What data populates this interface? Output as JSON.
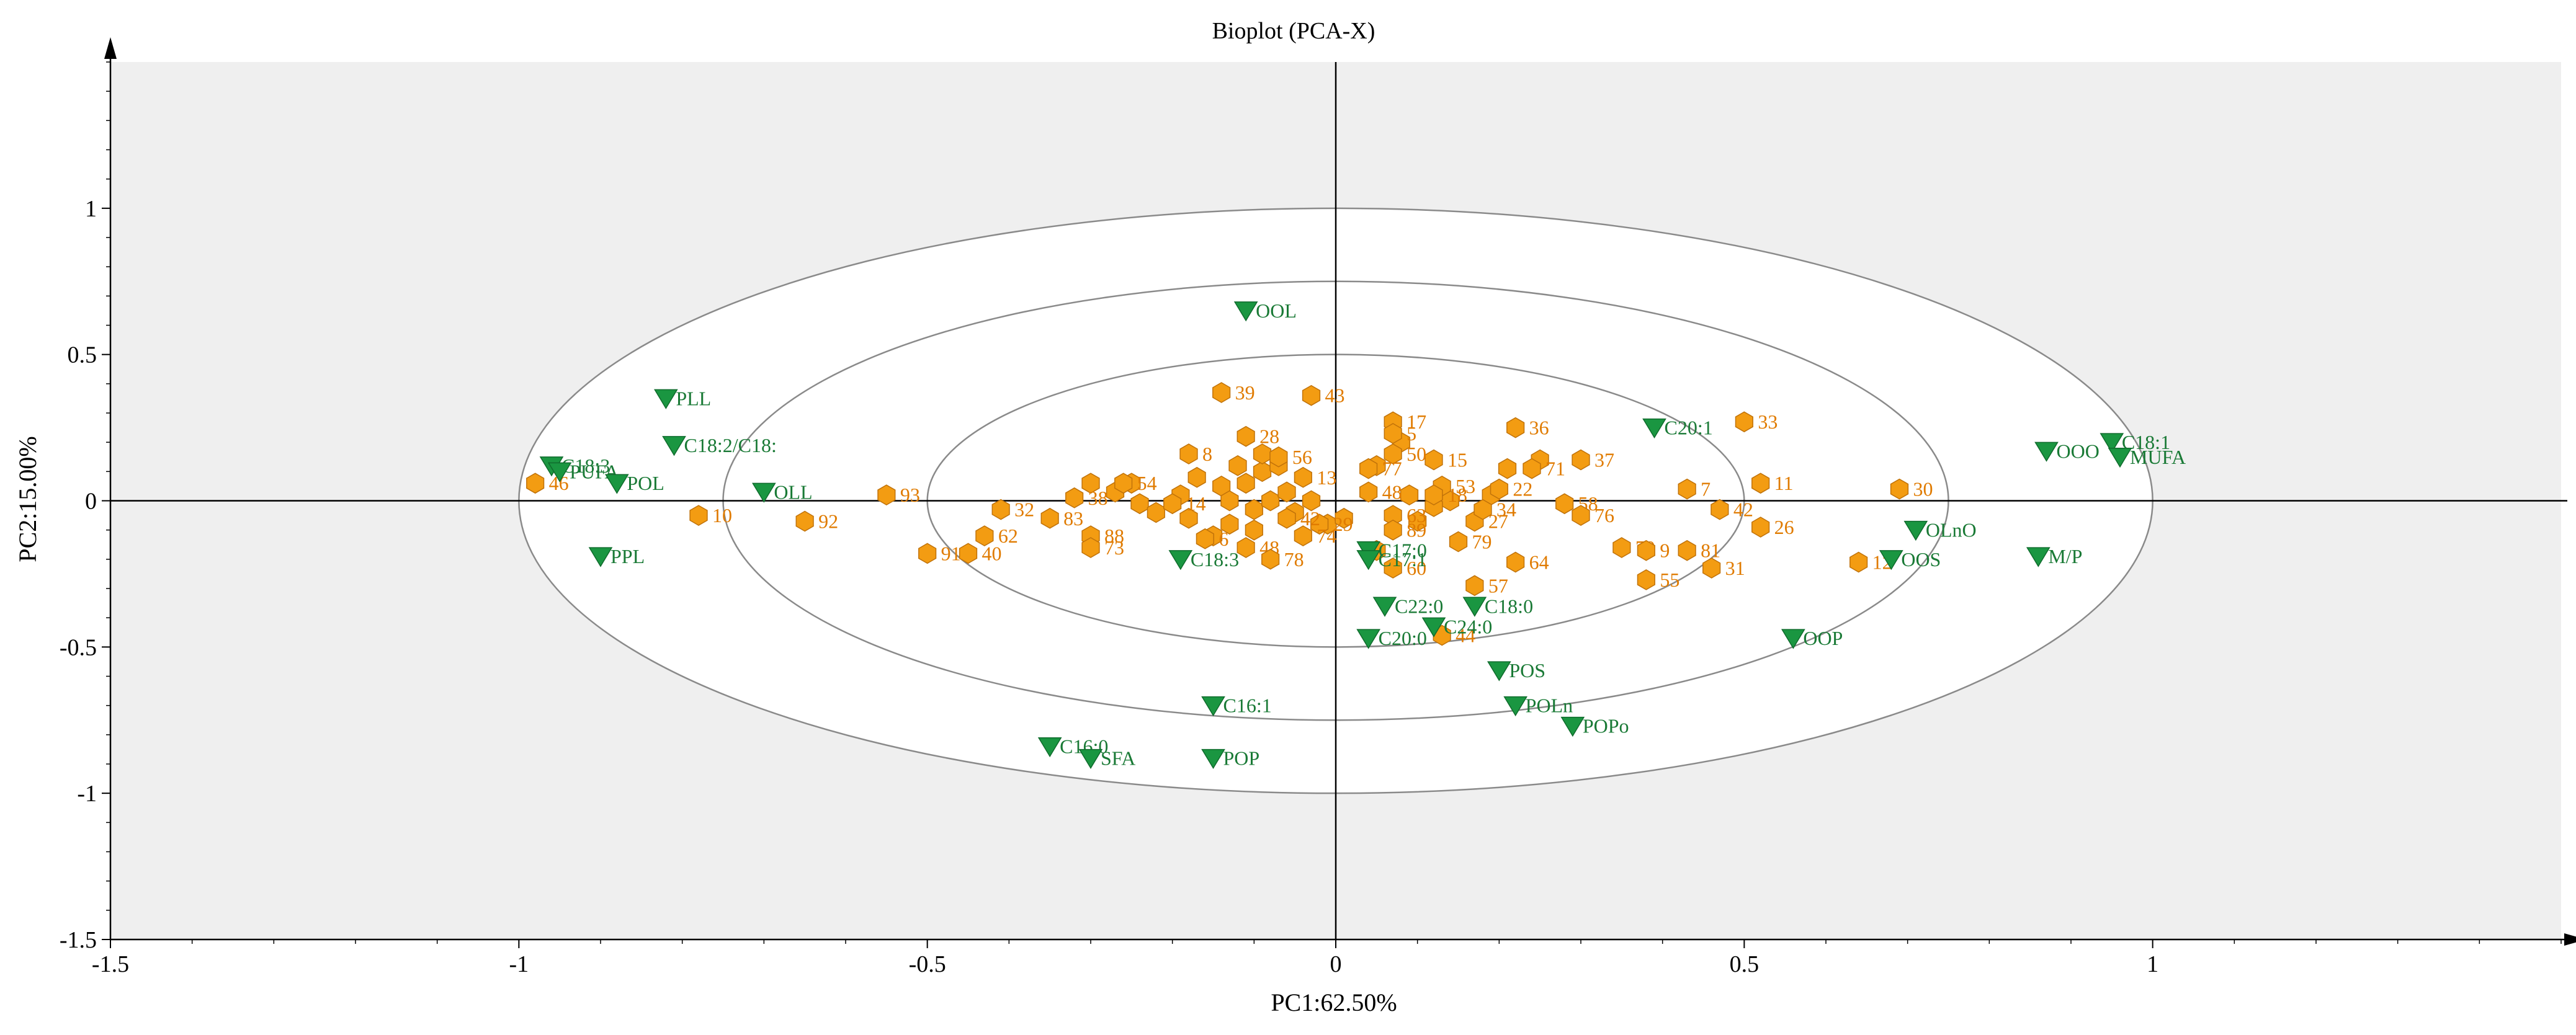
{
  "chart_data": {
    "type": "scatter",
    "title": "Bioplot (PCA-X)",
    "xlabel": "PC1:62.50%",
    "ylabel": "PC2:15.00%",
    "xlim": [
      -1.5,
      1.5
    ],
    "ylim": [
      -1.5,
      1.5
    ],
    "xticks": [
      "-1.5",
      "-1",
      "-0.5",
      "0",
      "0.5",
      "1"
    ],
    "yticks": [
      "-1.5",
      "-1",
      "-0.5",
      "0",
      "0.5",
      "1"
    ],
    "ellipses": [
      {
        "rx": 1.0,
        "ry": 1.0
      },
      {
        "rx": 0.75,
        "ry": 0.75
      },
      {
        "rx": 0.5,
        "ry": 0.5
      }
    ],
    "colors": {
      "background": "#efefef",
      "observation": "#f39c12",
      "observation_stroke": "#c0720a",
      "observation_text": "#e07b00",
      "variable": "#1a9641",
      "variable_text": "#1a7a36",
      "ellipse": "#8a8a8a"
    },
    "variables": [
      {
        "label": "OOL",
        "x": -0.11,
        "y": 0.65
      },
      {
        "label": "PLL",
        "x": -0.82,
        "y": 0.35
      },
      {
        "label": "C18:2/C18:",
        "x": -0.81,
        "y": 0.19
      },
      {
        "label": "C18:3",
        "x": -0.96,
        "y": 0.12
      },
      {
        "label": "PUFA",
        "x": -0.95,
        "y": 0.1
      },
      {
        "label": "POL",
        "x": -0.88,
        "y": 0.06
      },
      {
        "label": "OLL",
        "x": -0.7,
        "y": 0.03
      },
      {
        "label": "PPL",
        "x": -0.9,
        "y": -0.19
      },
      {
        "label": "C18:3",
        "x": -0.19,
        "y": -0.2
      },
      {
        "label": "C17:0",
        "x": 0.04,
        "y": -0.17
      },
      {
        "label": "C17:1",
        "x": 0.04,
        "y": -0.2
      },
      {
        "label": "C22:0",
        "x": 0.06,
        "y": -0.36
      },
      {
        "label": "C18:0",
        "x": 0.17,
        "y": -0.36
      },
      {
        "label": "C24:0",
        "x": 0.12,
        "y": -0.43
      },
      {
        "label": "C20:0",
        "x": 0.04,
        "y": -0.47
      },
      {
        "label": "POS",
        "x": 0.2,
        "y": -0.58
      },
      {
        "label": "POLn",
        "x": 0.22,
        "y": -0.7
      },
      {
        "label": "POPo",
        "x": 0.29,
        "y": -0.77
      },
      {
        "label": "C16:1",
        "x": -0.15,
        "y": -0.7
      },
      {
        "label": "C16:0",
        "x": -0.35,
        "y": -0.84
      },
      {
        "label": "SFA",
        "x": -0.3,
        "y": -0.88
      },
      {
        "label": "POP",
        "x": -0.15,
        "y": -0.88
      },
      {
        "label": "C20:1",
        "x": 0.39,
        "y": 0.25
      },
      {
        "label": "OOO",
        "x": 0.87,
        "y": 0.17
      },
      {
        "label": "C18:1",
        "x": 0.95,
        "y": 0.2
      },
      {
        "label": "MUFA",
        "x": 0.96,
        "y": 0.15
      },
      {
        "label": "OLnO",
        "x": 0.71,
        "y": -0.1
      },
      {
        "label": "OOS",
        "x": 0.68,
        "y": -0.2
      },
      {
        "label": "M/P",
        "x": 0.86,
        "y": -0.19
      },
      {
        "label": "OOP",
        "x": 0.56,
        "y": -0.47
      }
    ],
    "observations": [
      {
        "label": "39",
        "x": -0.14,
        "y": 0.37
      },
      {
        "label": "43",
        "x": -0.03,
        "y": 0.36
      },
      {
        "label": "8",
        "x": -0.18,
        "y": 0.16
      },
      {
        "label": "28",
        "x": -0.11,
        "y": 0.22
      },
      {
        "label": "56",
        "x": -0.07,
        "y": 0.15
      },
      {
        "label": "17",
        "x": 0.07,
        "y": 0.27
      },
      {
        "label": "5",
        "x": 0.07,
        "y": 0.23
      },
      {
        "label": "36",
        "x": 0.22,
        "y": 0.25
      },
      {
        "label": "33",
        "x": 0.5,
        "y": 0.27
      },
      {
        "label": "37",
        "x": 0.3,
        "y": 0.14
      },
      {
        "label": "15",
        "x": 0.12,
        "y": 0.14
      },
      {
        "label": "50",
        "x": 0.07,
        "y": 0.16
      },
      {
        "label": "77",
        "x": 0.04,
        "y": 0.11
      },
      {
        "label": "71",
        "x": 0.24,
        "y": 0.11
      },
      {
        "label": "46",
        "x": -0.98,
        "y": 0.06
      },
      {
        "label": "10",
        "x": -0.78,
        "y": -0.05
      },
      {
        "label": "92",
        "x": -0.65,
        "y": -0.07
      },
      {
        "label": "93",
        "x": -0.55,
        "y": 0.02
      },
      {
        "label": "32",
        "x": -0.41,
        "y": -0.03
      },
      {
        "label": "62",
        "x": -0.43,
        "y": -0.12
      },
      {
        "label": "40",
        "x": -0.45,
        "y": -0.18
      },
      {
        "label": "91",
        "x": -0.5,
        "y": -0.18
      },
      {
        "label": "83",
        "x": -0.35,
        "y": -0.06
      },
      {
        "label": "88",
        "x": -0.3,
        "y": -0.12
      },
      {
        "label": "73",
        "x": -0.3,
        "y": -0.16
      },
      {
        "label": "54",
        "x": -0.26,
        "y": 0.06
      },
      {
        "label": "38",
        "x": -0.32,
        "y": 0.01
      },
      {
        "label": "14",
        "x": -0.2,
        "y": -0.01
      },
      {
        "label": "6",
        "x": -0.16,
        "y": -0.13
      },
      {
        "label": "48",
        "x": -0.11,
        "y": -0.16
      },
      {
        "label": "78",
        "x": -0.08,
        "y": -0.2
      },
      {
        "label": "13",
        "x": -0.04,
        "y": 0.08
      },
      {
        "label": "29",
        "x": -0.02,
        "y": -0.08
      },
      {
        "label": "42",
        "x": -0.06,
        "y": -0.06
      },
      {
        "label": "74",
        "x": -0.04,
        "y": -0.12
      },
      {
        "label": "48",
        "x": 0.04,
        "y": 0.03
      },
      {
        "label": "63",
        "x": 0.07,
        "y": -0.05
      },
      {
        "label": "89",
        "x": 0.07,
        "y": -0.1
      },
      {
        "label": "53",
        "x": 0.13,
        "y": 0.05
      },
      {
        "label": "18",
        "x": 0.12,
        "y": 0.02
      },
      {
        "label": "22",
        "x": 0.2,
        "y": 0.04
      },
      {
        "label": "27",
        "x": 0.17,
        "y": -0.07
      },
      {
        "label": "34",
        "x": 0.18,
        "y": -0.03
      },
      {
        "label": "79",
        "x": 0.15,
        "y": -0.14
      },
      {
        "label": "60",
        "x": 0.07,
        "y": -0.23
      },
      {
        "label": "57",
        "x": 0.17,
        "y": -0.29
      },
      {
        "label": "64",
        "x": 0.22,
        "y": -0.21
      },
      {
        "label": "44",
        "x": 0.13,
        "y": -0.46
      },
      {
        "label": "58",
        "x": 0.28,
        "y": -0.01
      },
      {
        "label": "76",
        "x": 0.3,
        "y": -0.05
      },
      {
        "label": "7",
        "x": 0.43,
        "y": 0.04
      },
      {
        "label": "42",
        "x": 0.47,
        "y": -0.03
      },
      {
        "label": "11",
        "x": 0.52,
        "y": 0.06
      },
      {
        "label": "26",
        "x": 0.52,
        "y": -0.09
      },
      {
        "label": "30",
        "x": 0.69,
        "y": 0.04
      },
      {
        "label": "70",
        "x": 0.35,
        "y": -0.16
      },
      {
        "label": "9",
        "x": 0.38,
        "y": -0.17
      },
      {
        "label": "81",
        "x": 0.43,
        "y": -0.17
      },
      {
        "label": "31",
        "x": 0.46,
        "y": -0.23
      },
      {
        "label": "55",
        "x": 0.38,
        "y": -0.27
      },
      {
        "label": "12",
        "x": 0.64,
        "y": -0.21
      }
    ],
    "cluster_points": [
      [
        -0.3,
        0.06
      ],
      [
        -0.27,
        0.03
      ],
      [
        -0.25,
        0.06
      ],
      [
        -0.24,
        -0.01
      ],
      [
        -0.22,
        -0.04
      ],
      [
        -0.19,
        0.02
      ],
      [
        -0.18,
        -0.06
      ],
      [
        -0.14,
        0.05
      ],
      [
        -0.13,
        0.0
      ],
      [
        -0.13,
        -0.08
      ],
      [
        -0.12,
        0.12
      ],
      [
        -0.11,
        0.06
      ],
      [
        -0.1,
        -0.03
      ],
      [
        -0.1,
        -0.1
      ],
      [
        -0.09,
        0.1
      ],
      [
        -0.08,
        0.0
      ],
      [
        -0.07,
        0.12
      ],
      [
        -0.06,
        0.03
      ],
      [
        -0.05,
        -0.04
      ],
      [
        -0.03,
        0.0
      ],
      [
        -0.01,
        -0.08
      ],
      [
        0.01,
        -0.06
      ],
      [
        0.05,
        0.12
      ],
      [
        0.09,
        0.02
      ],
      [
        0.1,
        -0.07
      ],
      [
        0.14,
        0.0
      ],
      [
        0.19,
        0.02
      ],
      [
        0.21,
        0.11
      ],
      [
        0.25,
        0.14
      ],
      [
        0.12,
        -0.02
      ],
      [
        -0.15,
        -0.12
      ],
      [
        -0.17,
        0.08
      ],
      [
        0.05,
        -0.17
      ],
      [
        0.08,
        0.2
      ],
      [
        -0.09,
        0.16
      ]
    ]
  }
}
